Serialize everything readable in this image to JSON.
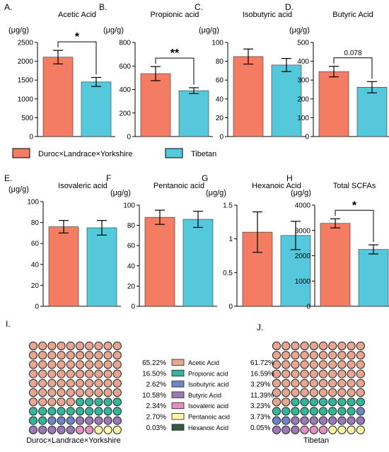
{
  "colors": {
    "duroc": "#f47c62",
    "tibetan": "#55c8dc",
    "acetic": "#e8a690",
    "propionic": "#35b69b",
    "isobutyric": "#6f86c6",
    "butyric": "#9a79b6",
    "isovaleric": "#e490bd",
    "pentanoic": "#fdf6a9",
    "hexanoic": "#2f5a44"
  },
  "legend": {
    "duroc": "Duroc×Landrace×Yorkshire",
    "tibetan": "Tibetan"
  },
  "chart_data": [
    {
      "type": "bar",
      "letter": "A.",
      "title": "Acetic Acid",
      "unit": "(μg/g)",
      "ylim": [
        0,
        2500
      ],
      "ticks": [
        0,
        500,
        1000,
        1500,
        2000,
        2500
      ],
      "tick_labels": [
        "0",
        "500",
        "1000",
        "1500",
        "2000",
        "2500"
      ],
      "categories": [
        "Duroc×Landrace×Yorkshire",
        "Tibetan"
      ],
      "values": [
        2110,
        1450
      ],
      "errors": [
        180,
        120
      ],
      "sig": "*"
    },
    {
      "type": "bar",
      "letter": "B.",
      "title": "Propionic acid",
      "unit": "(μg/g)",
      "ylim": [
        0,
        800
      ],
      "ticks": [
        0,
        200,
        400,
        600,
        800
      ],
      "tick_labels": [
        "0",
        "200",
        "400",
        "600",
        "800"
      ],
      "categories": [
        "Duroc×Landrace×Yorkshire",
        "Tibetan"
      ],
      "values": [
        535,
        390
      ],
      "errors": [
        60,
        25
      ],
      "sig": "**"
    },
    {
      "type": "bar",
      "letter": "C.",
      "title": "Isobutyric acid",
      "unit": "(μg/g)",
      "ylim": [
        0,
        100
      ],
      "ticks": [
        0,
        20,
        40,
        60,
        80,
        100
      ],
      "tick_labels": [
        "0",
        "20",
        "40",
        "60",
        "80",
        "100"
      ],
      "categories": [
        "Duroc×Landrace×Yorkshire",
        "Tibetan"
      ],
      "values": [
        85,
        76
      ],
      "errors": [
        8,
        7
      ],
      "sig": ""
    },
    {
      "type": "bar",
      "letter": "D.",
      "title": "Butyric Acid",
      "unit": "(μg/g)",
      "ylim": [
        0,
        500
      ],
      "ticks": [
        0,
        100,
        200,
        300,
        400,
        500
      ],
      "tick_labels": [
        "0",
        "100",
        "200",
        "300",
        "400",
        "500"
      ],
      "categories": [
        "Duroc×Landrace×Yorkshire",
        "Tibetan"
      ],
      "values": [
        345,
        262
      ],
      "errors": [
        28,
        30
      ],
      "sig": "0.078"
    },
    {
      "type": "bar",
      "letter": "E.",
      "title": "Isovaleric acid",
      "unit": "(μg/g)",
      "ylim": [
        0,
        100
      ],
      "ticks": [
        0,
        20,
        40,
        60,
        80,
        100
      ],
      "tick_labels": [
        "0",
        "20",
        "40",
        "60",
        "80",
        "100"
      ],
      "categories": [
        "Duroc×Landrace×Yorkshire",
        "Tibetan"
      ],
      "values": [
        76,
        75
      ],
      "errors": [
        6,
        7
      ],
      "sig": ""
    },
    {
      "type": "bar",
      "letter": "F",
      "title": "Pentanoic acid",
      "unit": "(μg/g)",
      "ylim": [
        0,
        100
      ],
      "ticks": [
        0,
        20,
        40,
        60,
        80,
        100
      ],
      "tick_labels": [
        "0",
        "20",
        "40",
        "60",
        "80",
        "100"
      ],
      "categories": [
        "Duroc×Landrace×Yorkshire",
        "Tibetan"
      ],
      "values": [
        88,
        86
      ],
      "errors": [
        7,
        8
      ],
      "sig": ""
    },
    {
      "type": "bar",
      "letter": "G",
      "title": "Hexanoic Acid",
      "unit": "(μg/g)",
      "ylim": [
        0,
        1.5
      ],
      "ticks": [
        0,
        0.5,
        1,
        1.5
      ],
      "tick_labels": [
        "0",
        "0.5",
        "1",
        "1.5"
      ],
      "categories": [
        "Duroc×Landrace×Yorkshire",
        "Tibetan"
      ],
      "values": [
        1.1,
        1.05
      ],
      "errors": [
        0.3,
        0.21
      ],
      "sig": ""
    },
    {
      "type": "bar",
      "letter": "H",
      "title": "Total SCFAs",
      "unit": "(μg/g)",
      "ylim": [
        0,
        4000
      ],
      "ticks": [
        0,
        1000,
        2000,
        3000,
        4000
      ],
      "tick_labels": [
        "0",
        "1000",
        "2000",
        "3000",
        "4000"
      ],
      "categories": [
        "Duroc×Landrace×Yorkshire",
        "Tibetan"
      ],
      "values": [
        3280,
        2250
      ],
      "errors": [
        180,
        180
      ],
      "sig": "*"
    }
  ],
  "composition": {
    "left_letter": "I.",
    "right_letter": "J.",
    "left_label": "Duroc×Landrace×Yorkshire",
    "right_label": "Tibetan",
    "items": [
      {
        "name": "Acetic Acid",
        "color_key": "acetic",
        "left": "65.22%",
        "right": "61.72%"
      },
      {
        "name": "Propionic acid",
        "color_key": "propionic",
        "left": "16.50%",
        "right": "16.59%"
      },
      {
        "name": "Isobutyric acid",
        "color_key": "isobutyric",
        "left": "2.62%",
        "right": "3.29%"
      },
      {
        "name": "Butyric Acid",
        "color_key": "butyric",
        "left": "10.58%",
        "right": "11.39%"
      },
      {
        "name": "Isovaleric acid",
        "color_key": "isovaleric",
        "left": "2.34%",
        "right": "3.23%"
      },
      {
        "name": "Pentanoic acid",
        "color_key": "pentanoic",
        "left": "2.70%",
        "right": "3.73%"
      },
      {
        "name": "Hexanoic Acid",
        "color_key": "hexanoic",
        "left": "0.03%",
        "right": "0.05%"
      }
    ],
    "left_counts": {
      "acetic": 65,
      "propionic": 17,
      "isobutyric": 3,
      "butyric": 10,
      "isovaleric": 2,
      "pentanoic": 3,
      "hexanoic": 0
    },
    "right_counts": {
      "acetic": 62,
      "propionic": 17,
      "isobutyric": 3,
      "butyric": 11,
      "isovaleric": 3,
      "pentanoic": 4,
      "hexanoic": 0
    }
  }
}
